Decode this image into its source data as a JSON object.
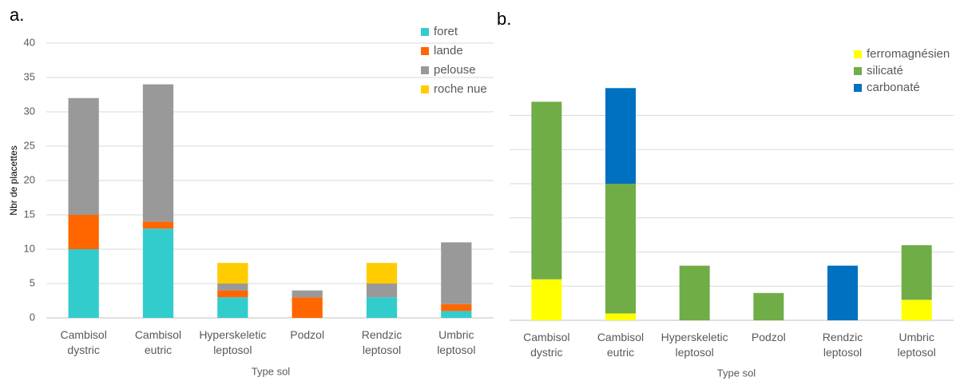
{
  "chart_data": [
    {
      "type": "stacked_bar",
      "panel_label": "a.",
      "y_label": "Nbr de placettes",
      "x_label": "Type sol",
      "categories": [
        "Cambisol dystric",
        "Cambisol eutric",
        "Hyperskeletic leptosol",
        "Podzol",
        "Rendzic leptosol",
        "Umbric leptosol"
      ],
      "series": [
        {
          "name": "foret",
          "color": "#33cccc",
          "values": [
            10,
            13,
            3,
            0,
            3,
            1
          ]
        },
        {
          "name": "lande",
          "color": "#ff6600",
          "values": [
            5,
            1,
            1,
            3,
            0,
            1
          ]
        },
        {
          "name": "pelouse",
          "color": "#999999",
          "values": [
            17,
            20,
            1,
            1,
            2,
            9
          ]
        },
        {
          "name": "roche nue",
          "color": "#ffcc00",
          "values": [
            0,
            0,
            3,
            0,
            3,
            0
          ]
        }
      ],
      "ylim": [
        0,
        40
      ],
      "yticks": [
        0,
        5,
        10,
        15,
        20,
        25,
        30,
        35,
        40
      ],
      "grid": true,
      "tick_labels": true,
      "legend": "top-right"
    },
    {
      "type": "stacked_bar",
      "panel_label": "b.",
      "x_label": "Type sol",
      "categories": [
        "Cambisol dystric",
        "Cambisol eutric",
        "Hyperskeletic leptosol",
        "Podzol",
        "Rendzic leptosol",
        "Umbric leptosol"
      ],
      "series": [
        {
          "name": "ferromagnésien",
          "color": "#ffff00",
          "values": [
            6,
            1,
            0,
            0,
            0,
            3
          ]
        },
        {
          "name": "silicaté",
          "color": "#70ad47",
          "values": [
            26,
            19,
            8,
            4,
            0,
            8
          ]
        },
        {
          "name": "carbonaté",
          "color": "#0070c0",
          "values": [
            0,
            14,
            0,
            0,
            8,
            0
          ]
        }
      ],
      "ylim": [
        0,
        40
      ],
      "yticks": [
        0,
        5,
        10,
        15,
        20,
        25,
        30
      ],
      "grid": true,
      "tick_labels": false,
      "legend": "top-right"
    }
  ]
}
